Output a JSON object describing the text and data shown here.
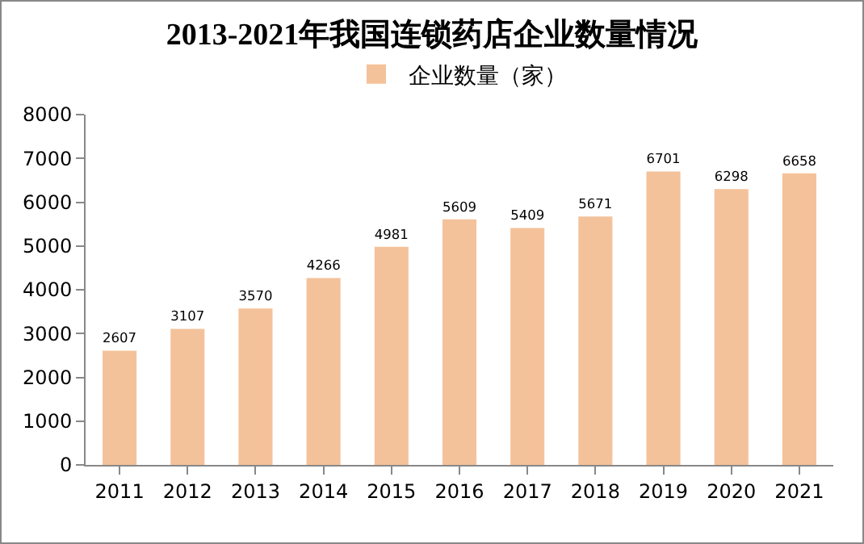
{
  "chart_data": {
    "type": "bar",
    "title": "2013-2021年我国连锁药店企业数量情况",
    "categories": [
      "2011",
      "2012",
      "2013",
      "2014",
      "2015",
      "2016",
      "2017",
      "2018",
      "2019",
      "2020",
      "2021"
    ],
    "series": [
      {
        "name": "企业数量（家）",
        "color": "#f4c29a",
        "values": [
          2607,
          3107,
          3570,
          4266,
          4981,
          5609,
          5409,
          5671,
          6701,
          6298,
          6658
        ]
      }
    ],
    "ylim": [
      0,
      8000
    ],
    "yticks": [
      0,
      1000,
      2000,
      3000,
      4000,
      5000,
      6000,
      7000,
      8000
    ],
    "grid": false,
    "legend": "top",
    "data_labels": true
  }
}
